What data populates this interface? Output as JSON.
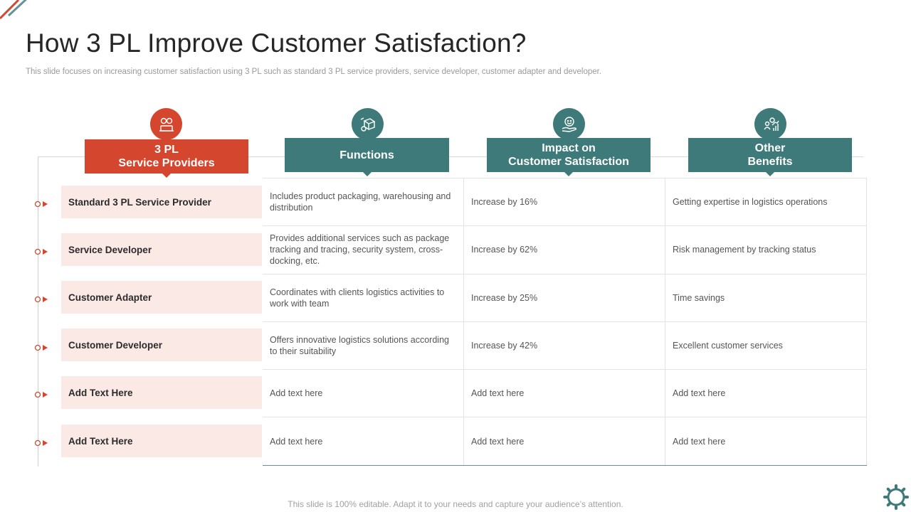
{
  "title": "How 3 PL Improve Customer Satisfaction?",
  "subtitle": "This slide focuses on increasing customer satisfaction using 3 PL such as standard 3 PL service providers, service developer, customer adapter and developer.",
  "headers": [
    {
      "line1": "3 PL",
      "line2": "Service Providers",
      "icon": "worker-icon",
      "color": "#d4472e"
    },
    {
      "line1": "Functions",
      "line2": "",
      "icon": "delivery-box-icon",
      "color": "#3f7a7a"
    },
    {
      "line1": "Impact on",
      "line2": "Customer Satisfaction",
      "icon": "smile-hand-icon",
      "color": "#3f7a7a"
    },
    {
      "line1": "Other",
      "line2": "Benefits",
      "icon": "people-growth-icon",
      "color": "#3f7a7a"
    }
  ],
  "rows": [
    {
      "label": "Standard 3 PL Service Provider",
      "functions": "Includes product packaging, warehousing and distribution",
      "impact": "Increase by 16%",
      "benefits": "Getting expertise in logistics operations"
    },
    {
      "label": "Service Developer",
      "functions": "Provides additional services such as package tracking and tracing, security system, cross-docking, etc.",
      "impact": "Increase by 62%",
      "benefits": "Risk management  by tracking status"
    },
    {
      "label": "Customer Adapter",
      "functions": "Coordinates  with clients logistics activities to work with team",
      "impact": "Increase by 25%",
      "benefits": "Time savings"
    },
    {
      "label": "Customer Developer",
      "functions": "Offers  innovative  logistics solutions according to their suitability",
      "impact": "Increase by 42%",
      "benefits": "Excellent customer services"
    },
    {
      "label": "Add Text Here",
      "functions": "Add text here",
      "impact": "Add text here",
      "benefits": "Add text here"
    },
    {
      "label": "Add Text Here",
      "functions": "Add text here",
      "impact": "Add text here",
      "benefits": "Add text here"
    }
  ],
  "footer": "This slide is 100% editable. Adapt it to your needs and capture your audience’s attention.",
  "colors": {
    "accent_red": "#d4472e",
    "accent_teal": "#3f7a7a",
    "row_bg": "#fbe9e6"
  }
}
